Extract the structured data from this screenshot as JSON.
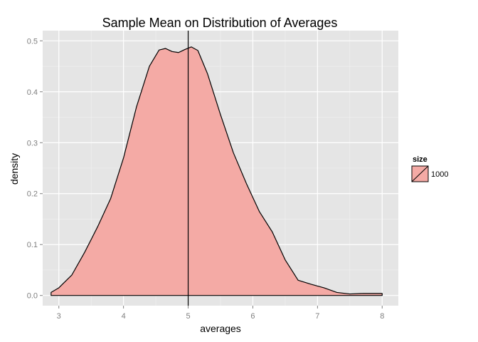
{
  "chart_data": {
    "type": "area",
    "title": "Sample Mean on Distribution of Averages",
    "xlabel": "averages",
    "ylabel": "density",
    "xlim": [
      2.75,
      8.25
    ],
    "ylim": [
      -0.02,
      0.52
    ],
    "x_ticks": [
      3,
      4,
      5,
      6,
      7,
      8
    ],
    "y_ticks": [
      0.0,
      0.1,
      0.2,
      0.3,
      0.4,
      0.5
    ],
    "x_tick_labels": [
      "3",
      "4",
      "5",
      "6",
      "7",
      "8"
    ],
    "y_tick_labels": [
      "0.0",
      "0.1",
      "0.2",
      "0.3",
      "0.4",
      "0.5"
    ],
    "grid": true,
    "legend": {
      "title": "size",
      "position": "right",
      "entries": [
        "1000"
      ]
    },
    "vline": {
      "x": 5.0
    },
    "series": [
      {
        "name": "1000",
        "x": [
          2.88,
          3.0,
          3.2,
          3.4,
          3.6,
          3.8,
          4.0,
          4.2,
          4.4,
          4.55,
          4.65,
          4.75,
          4.85,
          4.95,
          5.05,
          5.15,
          5.3,
          5.5,
          5.7,
          5.9,
          6.1,
          6.3,
          6.5,
          6.7,
          6.9,
          7.1,
          7.3,
          7.5,
          7.7,
          7.85,
          8.0
        ],
        "y": [
          0.006,
          0.015,
          0.04,
          0.085,
          0.135,
          0.19,
          0.27,
          0.37,
          0.45,
          0.482,
          0.485,
          0.479,
          0.477,
          0.483,
          0.488,
          0.481,
          0.435,
          0.355,
          0.28,
          0.22,
          0.165,
          0.125,
          0.07,
          0.03,
          0.022,
          0.015,
          0.006,
          0.003,
          0.004,
          0.004,
          0.004
        ]
      }
    ],
    "colors": {
      "fill": "#f4aaa5",
      "stroke": "#000000",
      "panel": "#e5e5e5",
      "grid_major": "#ffffff",
      "grid_minor": "#f2f2f2",
      "tick_text": "#7f7f7f"
    }
  }
}
